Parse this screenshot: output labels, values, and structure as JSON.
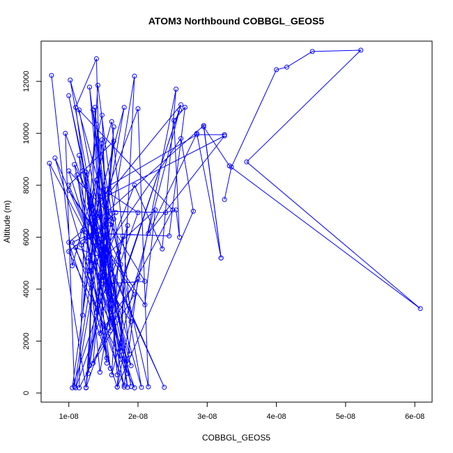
{
  "chart_data": {
    "type": "line",
    "title": "ATOM3 Northbound COBBGL_GEOS5",
    "xlabel": "COBBGL_GEOS5",
    "ylabel": "Altitude (m)",
    "xlim": [
      6e-09,
      6.25e-08
    ],
    "ylim": [
      -350,
      13550
    ],
    "x_ticks": [
      1e-08,
      2e-08,
      3e-08,
      4e-08,
      5e-08,
      6e-08
    ],
    "x_tick_labels": [
      "1e-08",
      "2e-08",
      "3e-08",
      "4e-08",
      "5e-08",
      "6e-08"
    ],
    "y_ticks": [
      0,
      2000,
      4000,
      6000,
      8000,
      10000,
      12000
    ],
    "y_tick_labels": [
      "0",
      "2000",
      "4000",
      "6000",
      "8000",
      "10000",
      "12000"
    ],
    "series": [
      {
        "color": "#0000ff",
        "points": [
          [
            7.5e-09,
            12230
          ],
          [
            1.05e-08,
            4900
          ],
          [
            1.62e-08,
            10450
          ],
          [
            1.9e-08,
            2750
          ],
          [
            1.28e-08,
            5200
          ],
          [
            1.6e-08,
            950
          ],
          [
            1.1e-08,
            11000
          ],
          [
            1.4e-08,
            12870
          ],
          [
            1.47e-08,
            5450
          ],
          [
            1.85e-08,
            220
          ],
          [
            1.35e-08,
            10900
          ],
          [
            1.55e-08,
            4500
          ],
          [
            1e-08,
            8000
          ],
          [
            1.65e-08,
            9700
          ],
          [
            1.4e-08,
            3100
          ],
          [
            1.95e-08,
            12200
          ],
          [
            1.75e-08,
            1600
          ],
          [
            1.2e-08,
            8550
          ],
          [
            1.8e-08,
            230
          ],
          [
            8e-09,
            9050
          ],
          [
            1.3e-08,
            6000
          ],
          [
            2e-08,
            10950
          ],
          [
            2.15e-08,
            240
          ],
          [
            1.45e-08,
            8500
          ],
          [
            1.25e-08,
            200
          ],
          [
            7.2e-09,
            8850
          ],
          [
            1.22e-08,
            6300
          ],
          [
            1e-08,
            5800
          ],
          [
            1.7e-08,
            230
          ],
          [
            2.55e-08,
            11700
          ],
          [
            2.35e-08,
            5550
          ],
          [
            1.95e-08,
            8000
          ],
          [
            1.52e-08,
            5100
          ],
          [
            1.3e-08,
            11780
          ],
          [
            1.68e-08,
            3500
          ],
          [
            2.62e-08,
            11100
          ],
          [
            1.58e-08,
            7700
          ],
          [
            2e-08,
            6950
          ],
          [
            1.1e-08,
            200
          ],
          [
            1.8e-08,
            11000
          ],
          [
            1.35e-08,
            6500
          ],
          [
            2.95e-08,
            10300
          ],
          [
            3.2e-08,
            5200
          ],
          [
            2.85e-08,
            10000
          ],
          [
            2.15e-08,
            6150
          ],
          [
            3.25e-08,
            9900
          ],
          [
            1.45e-08,
            7450
          ],
          [
            1.9e-08,
            250
          ],
          [
            1.15e-08,
            10900
          ],
          [
            2.5e-08,
            7050
          ],
          [
            1.15e-08,
            200
          ],
          [
            1.25e-08,
            8500
          ],
          [
            1.7e-08,
            3400
          ],
          [
            1.4e-08,
            10350
          ],
          [
            2.05e-08,
            220
          ],
          [
            1.3e-08,
            7300
          ],
          [
            1.75e-08,
            1300
          ],
          [
            1.02e-08,
            12050
          ],
          [
            1.6e-08,
            6500
          ],
          [
            2.1e-08,
            4300
          ],
          [
            1.5e-08,
            4200
          ],
          [
            1.65e-08,
            10250
          ],
          [
            1.35e-08,
            1150
          ],
          [
            1.95e-08,
            3800
          ],
          [
            1e-08,
            7800
          ],
          [
            2.1e-08,
            3400
          ],
          [
            2.25e-08,
            7050
          ],
          [
            1.5e-08,
            5200
          ],
          [
            1.1e-08,
            5600
          ],
          [
            1.8e-08,
            300
          ],
          [
            2e-08,
            4400
          ],
          [
            1.45e-08,
            2300
          ],
          [
            1.58e-08,
            7000
          ],
          [
            2.4e-08,
            6950
          ],
          [
            2.55e-08,
            7050
          ],
          [
            2.6e-08,
            6000
          ],
          [
            2.52e-08,
            10500
          ],
          [
            2.68e-08,
            11000
          ],
          [
            2.45e-08,
            6050
          ],
          [
            1.35e-08,
            6150
          ],
          [
            1.28e-08,
            750
          ],
          [
            1.65e-08,
            6700
          ],
          [
            1e-08,
            8550
          ],
          [
            1.55e-08,
            3900
          ],
          [
            1.85e-08,
            6450
          ],
          [
            1.7e-08,
            230
          ],
          [
            2.8e-08,
            7000
          ],
          [
            2.62e-08,
            9800
          ],
          [
            1.3e-08,
            4700
          ],
          [
            1.48e-08,
            9750
          ],
          [
            1.2e-08,
            3000
          ],
          [
            1.42e-08,
            11850
          ],
          [
            1.75e-08,
            4950
          ],
          [
            1.08e-08,
            8800
          ],
          [
            1.6e-08,
            2400
          ],
          [
            1.4e-08,
            8200
          ],
          [
            1.25e-08,
            5850
          ],
          [
            1.95e-08,
            200
          ],
          [
            1e-08,
            5450
          ],
          [
            1.68e-08,
            6950
          ],
          [
            1.18e-08,
            5700
          ],
          [
            1.55e-08,
            1350
          ],
          [
            1.12e-08,
            8400
          ],
          [
            1.4e-08,
            5700
          ],
          [
            1.08e-08,
            240
          ],
          [
            9.5e-09,
            10000
          ],
          [
            1.5e-08,
            5950
          ],
          [
            1.25e-08,
            210
          ],
          [
            2.6e-08,
            10900
          ],
          [
            1.62e-08,
            700
          ],
          [
            1.72e-08,
            5400
          ],
          [
            1.88e-08,
            1500
          ],
          [
            1.3e-08,
            6550
          ],
          [
            2.38e-08,
            220
          ],
          [
            1.45e-08,
            5800
          ],
          [
            1e-08,
            11450
          ],
          [
            1.52e-08,
            4550
          ],
          [
            1.15e-08,
            9150
          ],
          [
            1.45e-08,
            800
          ],
          [
            1.78e-08,
            6050
          ],
          [
            1.05e-08,
            200
          ],
          [
            1.4e-08,
            6800
          ],
          [
            1.55e-08,
            1150
          ],
          [
            1.25e-08,
            7950
          ],
          [
            1.48e-08,
            10700
          ],
          [
            1.6e-08,
            2700
          ],
          [
            1.45e-08,
            7550
          ],
          [
            1.35e-08,
            6350
          ],
          [
            1.9e-08,
            1050
          ],
          [
            1.05e-08,
            5800
          ],
          [
            1.42e-08,
            6250
          ],
          [
            1.85e-08,
            750
          ],
          [
            1.2e-08,
            6250
          ],
          [
            1.5e-08,
            5300
          ],
          [
            1.55e-08,
            7000
          ],
          [
            1.48e-08,
            9600
          ],
          [
            1.7e-08,
            700
          ],
          [
            1.38e-08,
            11000
          ],
          [
            1.3e-08,
            1050
          ],
          [
            1.55e-08,
            6000
          ],
          [
            1.62e-08,
            3600
          ],
          [
            1.5e-08,
            7850
          ],
          [
            2.85e-08,
            9950
          ],
          [
            3.25e-08,
            9950
          ]
        ]
      },
      {
        "color": "#0000ff",
        "points": [
          [
            3.25e-08,
            7450
          ],
          [
            3.35e-08,
            8700
          ],
          [
            4e-08,
            12450
          ],
          [
            4.15e-08,
            12550
          ],
          [
            4.52e-08,
            13150
          ],
          [
            5.22e-08,
            13200
          ],
          [
            3.57e-08,
            8900
          ],
          [
            6.08e-08,
            3250
          ],
          [
            3.32e-08,
            8750
          ],
          [
            2.95e-08,
            10250
          ],
          [
            3.2e-08,
            5200
          ]
        ]
      }
    ]
  }
}
